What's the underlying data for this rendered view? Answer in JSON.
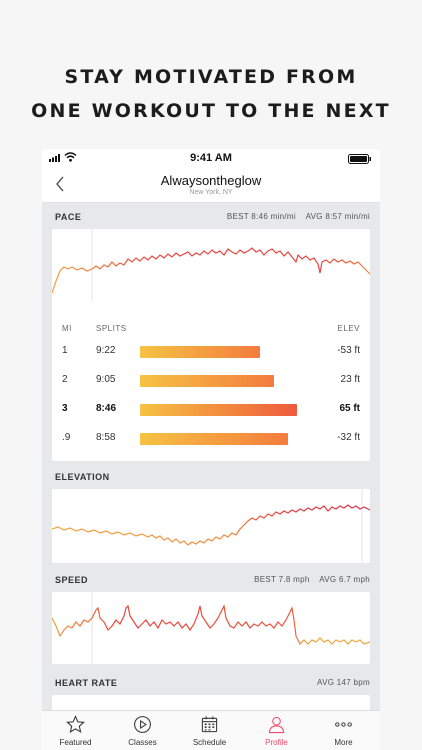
{
  "headline": {
    "line1": "STAY MOTIVATED FROM",
    "line2": "ONE WORKOUT TO THE NEXT"
  },
  "status": {
    "time": "9:41 AM"
  },
  "nav": {
    "title": "Alwaysontheglow",
    "subtitle": "New York, NY"
  },
  "pace": {
    "label": "PACE",
    "best_label": "BEST",
    "best": "8:46 min/mi",
    "avg_label": "AVG",
    "avg": "8:57 min/mi"
  },
  "splits": {
    "header_mi": "MI",
    "header_splits": "SPLITS",
    "header_elev": "ELEV",
    "rows": [
      {
        "mi": "1",
        "time": "9:22",
        "elev": "-53 ft",
        "relative_length": 0.74
      },
      {
        "mi": "2",
        "time": "9:05",
        "elev": "23 ft",
        "relative_length": 0.81
      },
      {
        "mi": "3",
        "time": "8:46",
        "elev": "65 ft",
        "relative_length": 0.96,
        "best": true
      },
      {
        "mi": ".9",
        "time": "8:58",
        "elev": "-32 ft",
        "relative_length": 0.91
      }
    ]
  },
  "elevation": {
    "label": "ELEVATION"
  },
  "speed": {
    "label": "SPEED",
    "best_label": "BEST",
    "best": "7.8 mph",
    "avg_label": "AVG",
    "avg": "6.7 mph"
  },
  "heart_rate": {
    "label": "HEART RATE",
    "avg_label": "AVG",
    "avg": "147 bpm"
  },
  "tabs": [
    {
      "label": "Featured",
      "icon": "star-icon"
    },
    {
      "label": "Classes",
      "icon": "play-circle-icon"
    },
    {
      "label": "Schedule",
      "icon": "calendar-icon"
    },
    {
      "label": "Profile",
      "icon": "person-icon",
      "active": true
    },
    {
      "label": "More",
      "icon": "more-dots-icon"
    }
  ],
  "colors": {
    "accent": "#ec4d6b",
    "line_hot": "#e8443f",
    "line_warm": "#f2a23c",
    "bar_start": "#f6c243",
    "bar_end": "#f37c3f"
  }
}
